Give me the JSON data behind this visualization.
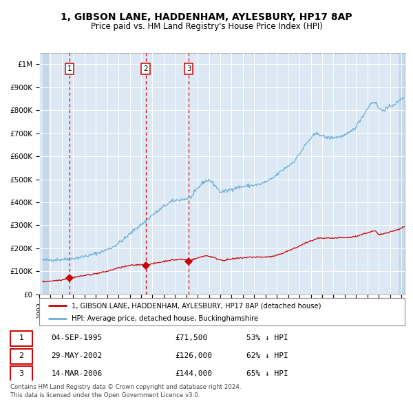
{
  "title1": "1, GIBSON LANE, HADDENHAM, AYLESBURY, HP17 8AP",
  "title2": "Price paid vs. HM Land Registry's House Price Index (HPI)",
  "legend_label1": "1, GIBSON LANE, HADDENHAM, AYLESBURY, HP17 8AP (detached house)",
  "legend_label2": "HPI: Average price, detached house, Buckinghamshire",
  "table_rows": [
    {
      "num": "1",
      "date": "04-SEP-1995",
      "price": "£71,500",
      "hpi": "53% ↓ HPI"
    },
    {
      "num": "2",
      "date": "29-MAY-2002",
      "price": "£126,000",
      "hpi": "62% ↓ HPI"
    },
    {
      "num": "3",
      "date": "14-MAR-2006",
      "price": "£144,000",
      "hpi": "65% ↓ HPI"
    }
  ],
  "footnote1": "Contains HM Land Registry data © Crown copyright and database right 2024.",
  "footnote2": "This data is licensed under the Open Government Licence v3.0.",
  "sale_dates": [
    1995.67,
    2002.41,
    2006.2
  ],
  "sale_prices": [
    71500,
    126000,
    144000
  ],
  "hpi_color": "#6baed6",
  "price_color": "#cc0000",
  "vline_color": "#cc0000",
  "background_color": "#dce9f5",
  "hatch_color": "#c5d8ea",
  "grid_color": "#ffffff",
  "ylim": [
    0,
    1050000
  ],
  "xlim_start": 1993.3,
  "xlim_end": 2025.3,
  "hpi_anchors": [
    [
      1993.3,
      148000
    ],
    [
      1994.0,
      150000
    ],
    [
      1995.0,
      152000
    ],
    [
      1995.67,
      154000
    ],
    [
      1996.5,
      160000
    ],
    [
      1997.5,
      170000
    ],
    [
      1998.5,
      185000
    ],
    [
      1999.5,
      205000
    ],
    [
      2000.5,
      240000
    ],
    [
      2001.5,
      285000
    ],
    [
      2002.41,
      318000
    ],
    [
      2003.0,
      345000
    ],
    [
      2003.5,
      362000
    ],
    [
      2004.0,
      382000
    ],
    [
      2004.5,
      398000
    ],
    [
      2005.0,
      408000
    ],
    [
      2005.5,
      412000
    ],
    [
      2006.0,
      415000
    ],
    [
      2006.5,
      425000
    ],
    [
      2007.0,
      460000
    ],
    [
      2007.5,
      488000
    ],
    [
      2008.0,
      498000
    ],
    [
      2008.5,
      475000
    ],
    [
      2009.0,
      445000
    ],
    [
      2009.5,
      448000
    ],
    [
      2010.0,
      458000
    ],
    [
      2010.5,
      465000
    ],
    [
      2011.0,
      468000
    ],
    [
      2011.5,
      472000
    ],
    [
      2012.0,
      475000
    ],
    [
      2012.5,
      478000
    ],
    [
      2013.0,
      488000
    ],
    [
      2013.5,
      500000
    ],
    [
      2014.0,
      520000
    ],
    [
      2014.5,
      540000
    ],
    [
      2015.0,
      558000
    ],
    [
      2015.5,
      578000
    ],
    [
      2016.0,
      610000
    ],
    [
      2016.5,
      648000
    ],
    [
      2017.0,
      678000
    ],
    [
      2017.3,
      692000
    ],
    [
      2017.7,
      700000
    ],
    [
      2018.0,
      688000
    ],
    [
      2018.5,
      680000
    ],
    [
      2019.0,
      682000
    ],
    [
      2019.5,
      685000
    ],
    [
      2020.0,
      690000
    ],
    [
      2020.5,
      705000
    ],
    [
      2021.0,
      730000
    ],
    [
      2021.5,
      768000
    ],
    [
      2022.0,
      808000
    ],
    [
      2022.3,
      830000
    ],
    [
      2022.7,
      838000
    ],
    [
      2023.0,
      808000
    ],
    [
      2023.3,
      800000
    ],
    [
      2023.7,
      808000
    ],
    [
      2024.0,
      815000
    ],
    [
      2024.3,
      825000
    ],
    [
      2024.7,
      835000
    ],
    [
      2025.0,
      848000
    ],
    [
      2025.3,
      860000
    ]
  ],
  "red_anchors": [
    [
      1993.3,
      55000
    ],
    [
      1994.0,
      58000
    ],
    [
      1995.0,
      63000
    ],
    [
      1995.67,
      71500
    ],
    [
      1996.0,
      74000
    ],
    [
      1997.0,
      82000
    ],
    [
      1998.0,
      90000
    ],
    [
      1999.0,
      100000
    ],
    [
      2000.0,
      115000
    ],
    [
      2001.0,
      125000
    ],
    [
      2002.0,
      130000
    ],
    [
      2002.41,
      126000
    ],
    [
      2003.0,
      132000
    ],
    [
      2003.5,
      138000
    ],
    [
      2004.0,
      143000
    ],
    [
      2004.5,
      148000
    ],
    [
      2005.0,
      150000
    ],
    [
      2005.5,
      152000
    ],
    [
      2006.0,
      150000
    ],
    [
      2006.2,
      144000
    ],
    [
      2006.5,
      150000
    ],
    [
      2007.0,
      158000
    ],
    [
      2007.4,
      165000
    ],
    [
      2007.8,
      168000
    ],
    [
      2008.3,
      162000
    ],
    [
      2008.8,
      152000
    ],
    [
      2009.3,
      148000
    ],
    [
      2009.8,
      152000
    ],
    [
      2010.3,
      155000
    ],
    [
      2010.8,
      158000
    ],
    [
      2011.3,
      160000
    ],
    [
      2011.8,
      162000
    ],
    [
      2012.3,
      162000
    ],
    [
      2012.8,
      162000
    ],
    [
      2013.3,
      163000
    ],
    [
      2013.8,
      166000
    ],
    [
      2014.3,
      175000
    ],
    [
      2014.8,
      185000
    ],
    [
      2015.3,
      195000
    ],
    [
      2015.8,
      205000
    ],
    [
      2016.3,
      218000
    ],
    [
      2016.8,
      228000
    ],
    [
      2017.3,
      238000
    ],
    [
      2017.8,
      245000
    ],
    [
      2018.0,
      242000
    ],
    [
      2018.5,
      244000
    ],
    [
      2019.0,
      244000
    ],
    [
      2019.5,
      246000
    ],
    [
      2020.0,
      246000
    ],
    [
      2020.5,
      248000
    ],
    [
      2021.0,
      252000
    ],
    [
      2021.5,
      260000
    ],
    [
      2022.0,
      268000
    ],
    [
      2022.3,
      272000
    ],
    [
      2022.7,
      276000
    ],
    [
      2023.0,
      258000
    ],
    [
      2023.3,
      262000
    ],
    [
      2023.7,
      268000
    ],
    [
      2024.0,
      272000
    ],
    [
      2024.5,
      278000
    ],
    [
      2025.0,
      288000
    ],
    [
      2025.3,
      295000
    ]
  ]
}
